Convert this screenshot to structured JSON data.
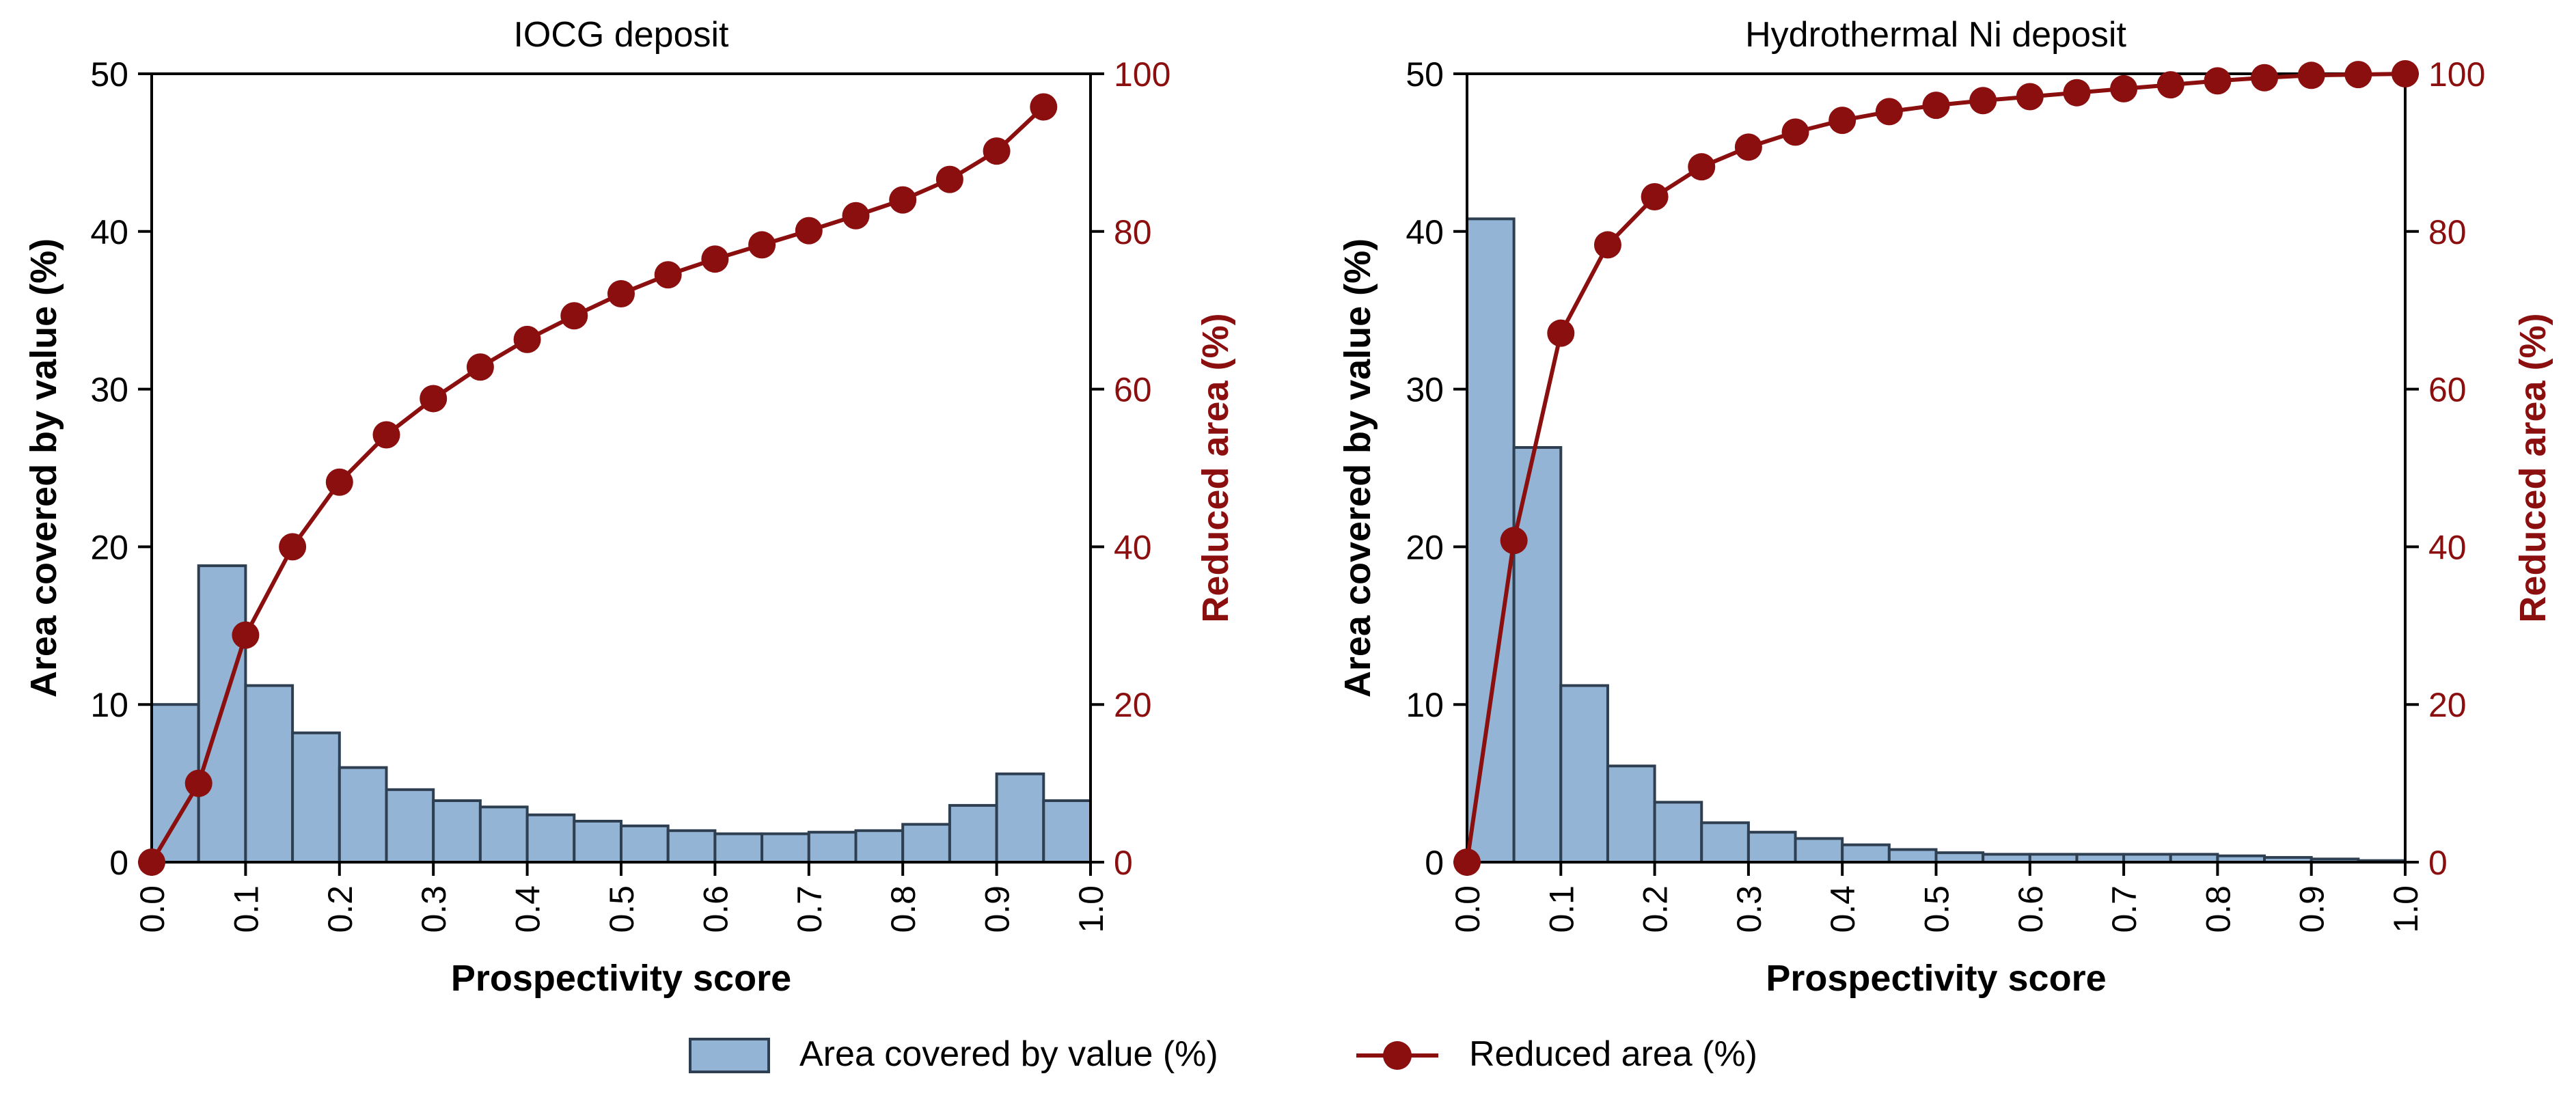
{
  "colors": {
    "bar_fill": "#93b4d4",
    "bar_edge": "#2f3f52",
    "line": "#8b0f0f",
    "axis": "#000000"
  },
  "chart_data": [
    {
      "type": "bar",
      "title": "IOCG deposit",
      "xlabel": "Prospectivity score",
      "ylabel": "Area covered by value (%)",
      "y2label": "Reduced area (%)",
      "xlim": [
        0,
        1
      ],
      "ylim": [
        0,
        50
      ],
      "y2lim": [
        0,
        100
      ],
      "xticks": [
        "0.0",
        "0.1",
        "0.2",
        "0.3",
        "0.4",
        "0.5",
        "0.6",
        "0.7",
        "0.8",
        "0.9",
        "1.0"
      ],
      "yticks": [
        "0",
        "10",
        "20",
        "30",
        "40",
        "50"
      ],
      "y2ticks": [
        "0",
        "20",
        "40",
        "60",
        "80",
        "100"
      ],
      "bin_width": 0.05,
      "bins": [
        0,
        0.05,
        0.1,
        0.15,
        0.2,
        0.25,
        0.3,
        0.35,
        0.4,
        0.45,
        0.5,
        0.55,
        0.6,
        0.65,
        0.7,
        0.75,
        0.8,
        0.85,
        0.9,
        0.95
      ],
      "values": [
        10.0,
        18.8,
        11.2,
        8.2,
        6.0,
        4.6,
        3.9,
        3.5,
        3.0,
        2.6,
        2.3,
        2.0,
        1.8,
        1.8,
        1.9,
        2.0,
        2.4,
        3.6,
        5.6,
        3.9
      ],
      "series": [
        {
          "name": "Reduced area (%)",
          "axis": "right",
          "x": [
            0,
            0.05,
            0.1,
            0.15,
            0.2,
            0.25,
            0.3,
            0.35,
            0.4,
            0.45,
            0.5,
            0.55,
            0.6,
            0.65,
            0.7,
            0.75,
            0.8,
            0.85,
            0.9,
            0.95
          ],
          "values": [
            0,
            10.0,
            28.8,
            40.0,
            48.2,
            54.2,
            58.8,
            62.8,
            66.3,
            69.3,
            72.1,
            74.5,
            76.5,
            78.3,
            80.1,
            82.0,
            84.0,
            86.6,
            90.2,
            95.8
          ]
        }
      ]
    },
    {
      "type": "bar",
      "title": "Hydrothermal Ni deposit",
      "xlabel": "Prospectivity score",
      "ylabel": "Area covered by value (%)",
      "y2label": "Reduced area (%)",
      "xlim": [
        0,
        1
      ],
      "ylim": [
        0,
        50
      ],
      "y2lim": [
        0,
        100
      ],
      "xticks": [
        "0.0",
        "0.1",
        "0.2",
        "0.3",
        "0.4",
        "0.5",
        "0.6",
        "0.7",
        "0.8",
        "0.9",
        "1.0"
      ],
      "yticks": [
        "0",
        "10",
        "20",
        "30",
        "40",
        "50"
      ],
      "y2ticks": [
        "0",
        "20",
        "40",
        "60",
        "80",
        "100"
      ],
      "bin_width": 0.05,
      "bins": [
        0,
        0.05,
        0.1,
        0.15,
        0.2,
        0.25,
        0.3,
        0.35,
        0.4,
        0.45,
        0.5,
        0.55,
        0.6,
        0.65,
        0.7,
        0.75,
        0.8,
        0.85,
        0.9,
        0.95
      ],
      "values": [
        40.8,
        26.3,
        11.2,
        6.1,
        3.8,
        2.5,
        1.9,
        1.5,
        1.1,
        0.8,
        0.6,
        0.5,
        0.5,
        0.5,
        0.5,
        0.5,
        0.4,
        0.3,
        0.2,
        0.1
      ],
      "series": [
        {
          "name": "Reduced area (%)",
          "axis": "right",
          "x": [
            0,
            0.05,
            0.1,
            0.15,
            0.2,
            0.25,
            0.3,
            0.35,
            0.4,
            0.45,
            0.5,
            0.55,
            0.6,
            0.65,
            0.7,
            0.75,
            0.8,
            0.85,
            0.9,
            0.95,
            1.0
          ],
          "values": [
            0,
            40.8,
            67.1,
            78.3,
            84.4,
            88.2,
            90.7,
            92.6,
            94.1,
            95.2,
            96.0,
            96.6,
            97.1,
            97.6,
            98.1,
            98.6,
            99.1,
            99.5,
            99.8,
            99.9,
            100
          ]
        }
      ]
    }
  ],
  "legend": {
    "position": "bottom-center",
    "items": [
      {
        "label": "Area covered by value (%)",
        "kind": "bar"
      },
      {
        "label": "Reduced area (%)",
        "kind": "line"
      }
    ]
  }
}
